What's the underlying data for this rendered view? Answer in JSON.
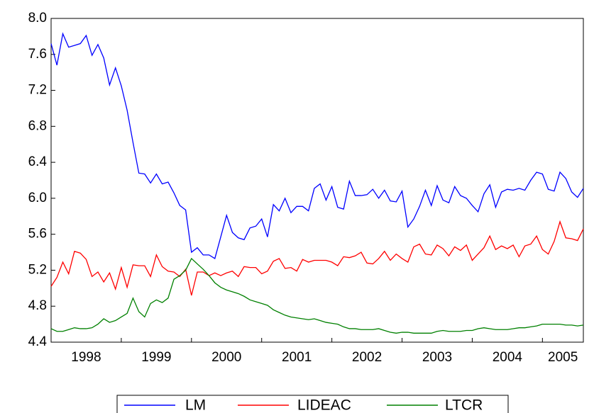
{
  "chart_data": {
    "type": "line",
    "x": [
      1998,
      1998.083,
      1998.167,
      1998.25,
      1998.333,
      1998.417,
      1998.5,
      1998.583,
      1998.667,
      1998.75,
      1998.833,
      1998.917,
      1999,
      1999.083,
      1999.167,
      1999.25,
      1999.333,
      1999.417,
      1999.5,
      1999.583,
      1999.667,
      1999.75,
      1999.833,
      1999.917,
      2000,
      2000.083,
      2000.167,
      2000.25,
      2000.333,
      2000.417,
      2000.5,
      2000.583,
      2000.667,
      2000.75,
      2000.833,
      2000.917,
      2001,
      2001.083,
      2001.167,
      2001.25,
      2001.333,
      2001.417,
      2001.5,
      2001.583,
      2001.667,
      2001.75,
      2001.833,
      2001.917,
      2002,
      2002.083,
      2002.167,
      2002.25,
      2002.333,
      2002.417,
      2002.5,
      2002.583,
      2002.667,
      2002.75,
      2002.833,
      2002.917,
      2003,
      2003.083,
      2003.167,
      2003.25,
      2003.333,
      2003.417,
      2003.5,
      2003.583,
      2003.667,
      2003.75,
      2003.833,
      2003.917,
      2004,
      2004.083,
      2004.167,
      2004.25,
      2004.333,
      2004.417,
      2004.5,
      2004.583,
      2004.667,
      2004.75,
      2004.833,
      2004.917,
      2005,
      2005.083,
      2005.167,
      2005.25,
      2005.333,
      2005.417,
      2005.5,
      2005.583
    ],
    "series": [
      {
        "name": "LM",
        "color": "#0000ff",
        "values": [
          7.72,
          7.48,
          7.83,
          7.68,
          7.7,
          7.72,
          7.81,
          7.59,
          7.71,
          7.56,
          7.26,
          7.45,
          7.25,
          6.98,
          6.62,
          6.28,
          6.27,
          6.17,
          6.27,
          6.16,
          6.18,
          6.06,
          5.92,
          5.87,
          5.4,
          5.45,
          5.37,
          5.37,
          5.33,
          5.57,
          5.81,
          5.62,
          5.56,
          5.54,
          5.67,
          5.69,
          5.77,
          5.57,
          5.93,
          5.86,
          6.0,
          5.84,
          5.91,
          5.91,
          5.86,
          6.11,
          6.16,
          5.98,
          6.13,
          5.9,
          5.88,
          6.19,
          6.03,
          6.03,
          6.04,
          6.1,
          6.0,
          6.09,
          5.97,
          5.96,
          6.08,
          5.68,
          5.77,
          5.91,
          6.09,
          5.92,
          6.14,
          5.98,
          5.95,
          6.13,
          6.03,
          6.0,
          5.92,
          5.85,
          6.05,
          6.15,
          5.9,
          6.07,
          6.1,
          6.09,
          6.11,
          6.09,
          6.2,
          6.29,
          6.27,
          6.1,
          6.08,
          6.29,
          6.22,
          6.07,
          6.01,
          6.11
        ]
      },
      {
        "name": "LIDEAC",
        "color": "#ff0000",
        "values": [
          5.02,
          5.12,
          5.29,
          5.16,
          5.41,
          5.39,
          5.32,
          5.13,
          5.18,
          5.07,
          5.17,
          4.99,
          5.23,
          5.01,
          5.26,
          5.25,
          5.25,
          5.13,
          5.37,
          5.24,
          5.19,
          5.18,
          5.13,
          5.21,
          4.92,
          5.18,
          5.18,
          5.14,
          5.17,
          5.14,
          5.17,
          5.19,
          5.13,
          5.24,
          5.23,
          5.23,
          5.16,
          5.19,
          5.3,
          5.33,
          5.22,
          5.23,
          5.19,
          5.32,
          5.29,
          5.31,
          5.31,
          5.31,
          5.29,
          5.25,
          5.35,
          5.34,
          5.36,
          5.4,
          5.28,
          5.27,
          5.33,
          5.41,
          5.31,
          5.38,
          5.33,
          5.29,
          5.46,
          5.49,
          5.38,
          5.37,
          5.48,
          5.44,
          5.36,
          5.46,
          5.42,
          5.48,
          5.31,
          5.38,
          5.45,
          5.58,
          5.43,
          5.47,
          5.44,
          5.48,
          5.35,
          5.47,
          5.49,
          5.58,
          5.43,
          5.38,
          5.52,
          5.74,
          5.56,
          5.55,
          5.53,
          5.66
        ]
      },
      {
        "name": "LTCR",
        "color": "#008000",
        "values": [
          4.55,
          4.52,
          4.52,
          4.54,
          4.56,
          4.55,
          4.55,
          4.56,
          4.6,
          4.66,
          4.62,
          4.64,
          4.68,
          4.72,
          4.89,
          4.74,
          4.68,
          4.83,
          4.87,
          4.84,
          4.89,
          5.1,
          5.14,
          5.2,
          5.33,
          5.27,
          5.21,
          5.14,
          5.06,
          5.01,
          4.98,
          4.96,
          4.94,
          4.91,
          4.87,
          4.85,
          4.83,
          4.81,
          4.76,
          4.73,
          4.7,
          4.68,
          4.67,
          4.66,
          4.65,
          4.66,
          4.64,
          4.62,
          4.61,
          4.6,
          4.57,
          4.55,
          4.55,
          4.54,
          4.54,
          4.54,
          4.55,
          4.53,
          4.51,
          4.5,
          4.51,
          4.51,
          4.5,
          4.5,
          4.5,
          4.5,
          4.52,
          4.53,
          4.52,
          4.52,
          4.52,
          4.53,
          4.53,
          4.55,
          4.56,
          4.55,
          4.54,
          4.54,
          4.54,
          4.55,
          4.56,
          4.56,
          4.57,
          4.58,
          4.6,
          4.6,
          4.6,
          4.6,
          4.59,
          4.59,
          4.58,
          4.59
        ]
      }
    ],
    "xlim": [
      1998,
      2005.583
    ],
    "xticks": [
      {
        "value": 1998,
        "label": "1998"
      },
      {
        "value": 1999,
        "label": "1999"
      },
      {
        "value": 2000,
        "label": "2000"
      },
      {
        "value": 2001,
        "label": "2001"
      },
      {
        "value": 2002,
        "label": "2002"
      },
      {
        "value": 2003,
        "label": "2003"
      },
      {
        "value": 2004,
        "label": "2004"
      },
      {
        "value": 2005,
        "label": "2005"
      }
    ],
    "ylim": [
      4.4,
      8.0
    ],
    "yticks": [
      4.4,
      4.8,
      5.2,
      5.6,
      {
        "value": 6.0,
        "label": "6.0"
      },
      6.4,
      6.8,
      7.2,
      7.6,
      {
        "value": 8.0,
        "label": "8.0"
      }
    ],
    "legend": "bottom"
  }
}
